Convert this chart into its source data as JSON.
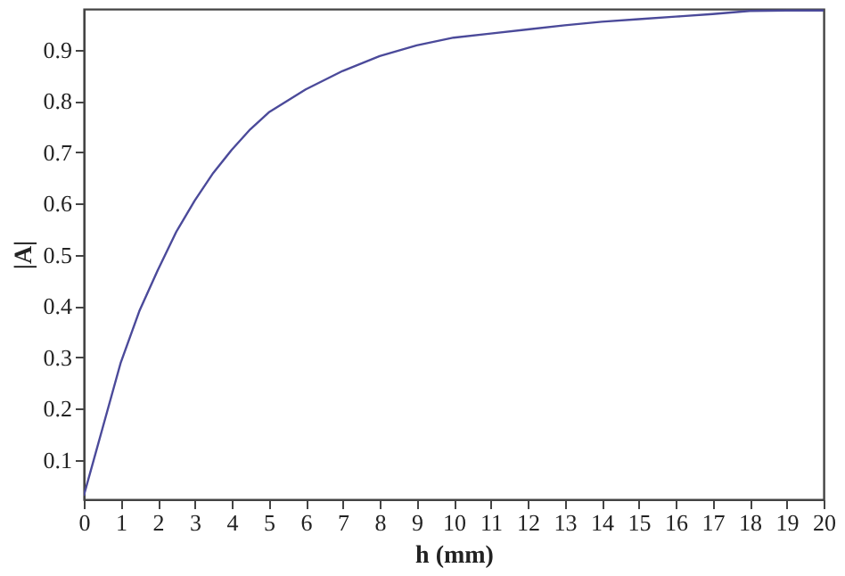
{
  "chart_data": {
    "type": "line",
    "xlabel": "h (mm)",
    "ylabel": "|A|",
    "x": [
      0,
      0.5,
      1,
      1.5,
      2,
      2.5,
      3,
      3.5,
      4,
      4.5,
      5,
      6,
      7,
      8,
      9,
      10,
      11,
      12,
      13,
      14,
      15,
      16,
      17,
      18,
      19,
      20
    ],
    "series": [
      {
        "color": "#4b4a9a",
        "values": [
          0.03,
          0.16,
          0.29,
          0.39,
          0.47,
          0.545,
          0.606,
          0.66,
          0.705,
          0.745,
          0.778,
          0.823,
          0.859,
          0.888,
          0.909,
          0.924,
          0.932,
          0.94,
          0.948,
          0.955,
          0.96,
          0.965,
          0.97,
          0.976,
          0.977,
          0.977
        ]
      }
    ],
    "xlim": [
      0,
      20
    ],
    "xticks": [
      0,
      1,
      2,
      3,
      4,
      5,
      6,
      7,
      8,
      9,
      10,
      11,
      12,
      13,
      14,
      15,
      16,
      17,
      18,
      19,
      20
    ],
    "ylim": [
      0.023,
      0.98
    ],
    "yticks": [
      0.1,
      0.2,
      0.3,
      0.4,
      0.5,
      0.6,
      0.7,
      0.8,
      0.9
    ],
    "grid": false,
    "legend": false,
    "marker": "none",
    "line_style": "solid"
  }
}
